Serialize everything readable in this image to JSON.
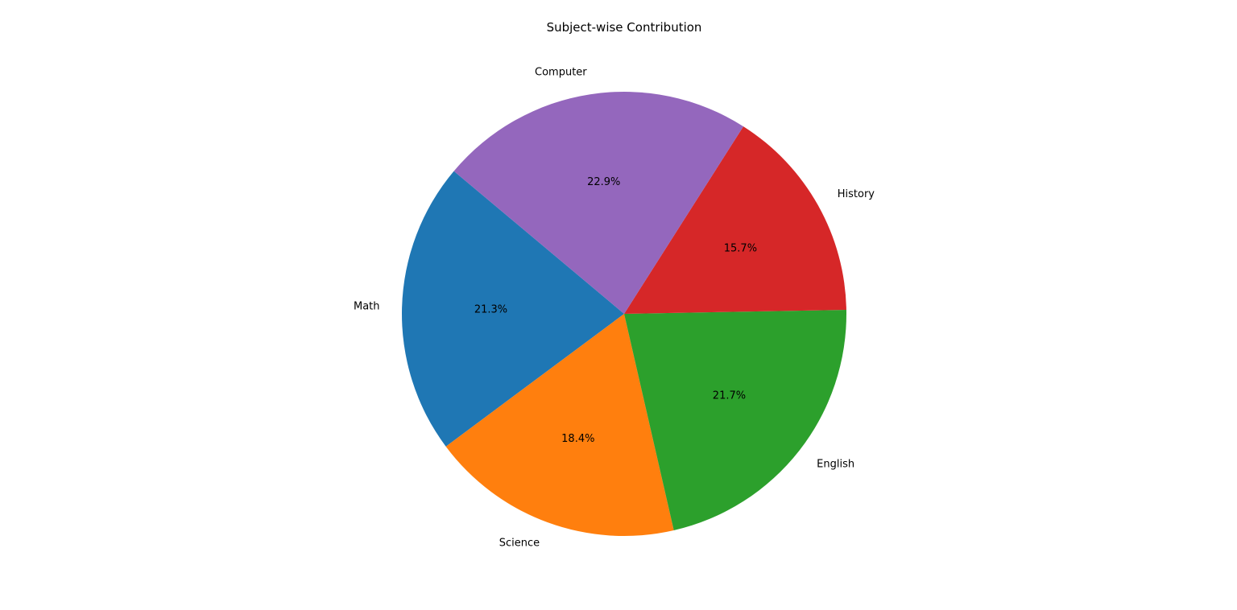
{
  "chart_data": {
    "type": "pie",
    "title": "Subject-wise Contribution",
    "categories": [
      "Math",
      "Science",
      "English",
      "History",
      "Computer"
    ],
    "values": [
      21.3,
      18.4,
      21.7,
      15.7,
      22.9
    ],
    "percent_labels": [
      "21.3%",
      "18.4%",
      "21.7%",
      "15.7%",
      "22.9%"
    ],
    "colors": [
      "#1f77b4",
      "#ff7f0e",
      "#2ca02c",
      "#d62728",
      "#9467bd"
    ],
    "start_angle_deg": 140,
    "direction": "counterclockwise",
    "legend": "none"
  }
}
